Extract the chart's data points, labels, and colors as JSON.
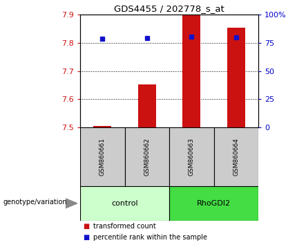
{
  "title": "GDS4455 / 202778_s_at",
  "samples": [
    "GSM860661",
    "GSM860662",
    "GSM860663",
    "GSM860664"
  ],
  "bar_values": [
    7.505,
    7.653,
    7.9,
    7.853
  ],
  "bar_baseline": 7.5,
  "percentile_values": [
    78.5,
    79.5,
    80.5,
    80.0
  ],
  "ylim_left": [
    7.5,
    7.9
  ],
  "ylim_right": [
    0,
    100
  ],
  "yticks_left": [
    7.5,
    7.6,
    7.7,
    7.8,
    7.9
  ],
  "yticks_right": [
    0,
    25,
    50,
    75,
    100
  ],
  "ytick_labels_right": [
    "0",
    "25",
    "50",
    "75",
    "100%"
  ],
  "bar_color": "#CC1111",
  "dot_color": "#1111CC",
  "bar_width": 0.4,
  "left_label_color": "#CC1111",
  "right_label_color": "#0000CC",
  "group_label": "genotype/variation",
  "control_color": "#CCFFCC",
  "rhogdi2_color": "#44DD44",
  "sample_box_color": "#CCCCCC",
  "legend_items": [
    {
      "label": "transformed count",
      "color": "#CC1111"
    },
    {
      "label": "percentile rank within the sample",
      "color": "#1111CC"
    }
  ]
}
